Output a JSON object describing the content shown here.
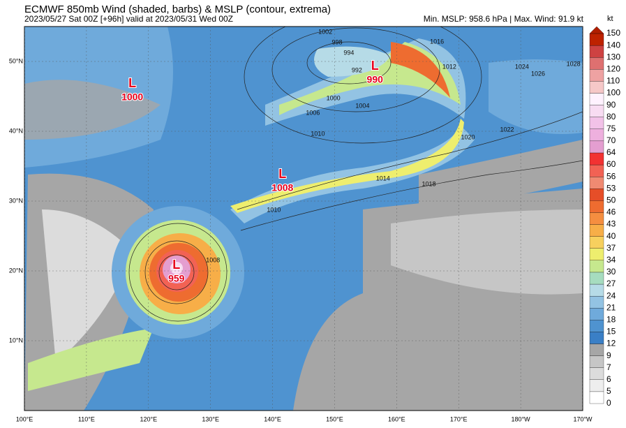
{
  "header": {
    "title": "ECMWF 850mb Wind (shaded, barbs) & MSLP (contour, extrema)",
    "subtitle": "2023/05/27 Sat 00Z [+96h] valid at 2023/05/31 Wed 00Z",
    "info": "Min. MSLP: 958.6 hPa | Max. Wind: 91.9 kt"
  },
  "map": {
    "lonlim": [
      100,
      190
    ],
    "latlim": [
      0,
      55
    ],
    "lonticks": [
      {
        "value": 100,
        "label": "100°E"
      },
      {
        "value": 110,
        "label": "110°E"
      },
      {
        "value": 120,
        "label": "120°E"
      },
      {
        "value": 130,
        "label": "130°E"
      },
      {
        "value": 140,
        "label": "140°E"
      },
      {
        "value": 150,
        "label": "150°E"
      },
      {
        "value": 160,
        "label": "160°E"
      },
      {
        "value": 170,
        "label": "170°E"
      },
      {
        "value": 180,
        "label": "180°W"
      },
      {
        "value": 190,
        "label": "170°W"
      }
    ],
    "latticks": [
      {
        "value": 10,
        "label": "10°N"
      },
      {
        "value": 20,
        "label": "20°N"
      },
      {
        "value": 30,
        "label": "30°N"
      },
      {
        "value": 40,
        "label": "40°N"
      },
      {
        "value": 50,
        "label": "50°N"
      }
    ],
    "lows": [
      {
        "label": "L",
        "value": 1000,
        "lon": 117.4,
        "lat": 45.8
      },
      {
        "label": "L",
        "value": 990,
        "lon": 156.5,
        "lat": 48.3
      },
      {
        "label": "L",
        "value": 1008,
        "lon": 141.6,
        "lat": 32.8
      },
      {
        "label": "L",
        "value": 959,
        "lon": 124.5,
        "lat": 19.8
      }
    ],
    "contour_labels": [
      {
        "value": 1002,
        "lon": 148.5,
        "lat": 54.2
      },
      {
        "value": 998,
        "lon": 150.4,
        "lat": 52.7
      },
      {
        "value": 994,
        "lon": 152.3,
        "lat": 51.2
      },
      {
        "value": 992,
        "lon": 153.6,
        "lat": 48.7
      },
      {
        "value": 1000,
        "lon": 149.8,
        "lat": 44.7
      },
      {
        "value": 1004,
        "lon": 154.5,
        "lat": 43.6
      },
      {
        "value": 1006,
        "lon": 146.5,
        "lat": 42.6
      },
      {
        "value": 1010,
        "lon": 147.3,
        "lat": 39.6
      },
      {
        "value": 1014,
        "lon": 157.8,
        "lat": 33.2
      },
      {
        "value": 1018,
        "lon": 165.2,
        "lat": 32.4
      },
      {
        "value": 1020,
        "lon": 171.5,
        "lat": 39.1
      },
      {
        "value": 1022,
        "lon": 177.8,
        "lat": 40.2
      },
      {
        "value": 1024,
        "lon": 180.2,
        "lat": 49.2
      },
      {
        "value": 1026,
        "lon": 182.8,
        "lat": 48.2
      },
      {
        "value": 1028,
        "lon": 188.5,
        "lat": 49.6
      },
      {
        "value": 1016,
        "lon": 166.5,
        "lat": 52.8
      },
      {
        "value": 1012,
        "lon": 168.5,
        "lat": 49.2
      },
      {
        "value": 1008,
        "lon": 130.4,
        "lat": 21.5
      },
      {
        "value": 1010,
        "lon": 140.2,
        "lat": 28.7
      }
    ]
  },
  "colorbar": {
    "unit": "kt",
    "levels": [
      0,
      5,
      6,
      7,
      9,
      12,
      15,
      18,
      21,
      24,
      27,
      30,
      34,
      37,
      40,
      43,
      46,
      50,
      53,
      56,
      60,
      64,
      70,
      75,
      80,
      90,
      100,
      110,
      120,
      130,
      140,
      150
    ],
    "colors": [
      "#ffffff",
      "#eeeeee",
      "#dcdcdc",
      "#c6c6c6",
      "#a6a6a6",
      "#3a7fc6",
      "#4f93d0",
      "#6faadb",
      "#93c3e3",
      "#b6dbe7",
      "#a6dcbf",
      "#c6e88e",
      "#eeee6e",
      "#f7d05e",
      "#f7ae48",
      "#f58e40",
      "#ee6c30",
      "#e64e28",
      "#f08a72",
      "#f26254",
      "#f23232",
      "#e49ed0",
      "#eeb0de",
      "#f2c2e8",
      "#f8dcf2",
      "#fff2ff",
      "#f6c8c8",
      "#eea2a2",
      "#de7070",
      "#ce4242",
      "#be2200"
    ],
    "extend_color": "#b01e00"
  }
}
